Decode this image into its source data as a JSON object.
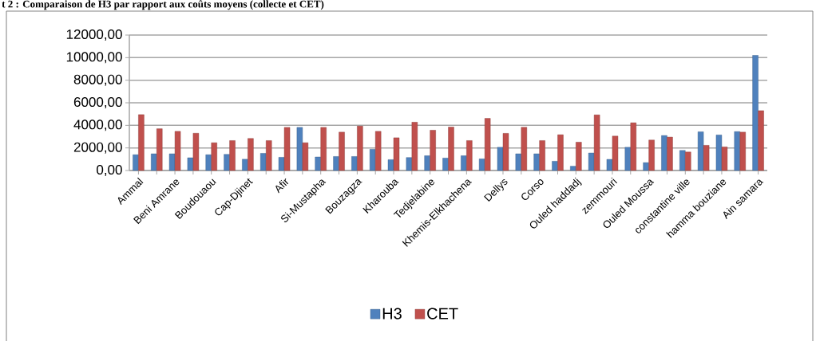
{
  "chart_data": {
    "type": "bar",
    "title": "t 2 : Comparaison de H3 par rapport aux coûts moyens (collecte et CET)",
    "categories": [
      "Ammal",
      null,
      "Beni Amrane",
      null,
      "Boudouaou",
      null,
      "Cap-Djinet",
      null,
      "Afir",
      null,
      "Si-Mustapha",
      null,
      "Bouzagza",
      null,
      "Kharouba",
      null,
      "Tedjelabine",
      null,
      "Khemis-Elkhachena",
      null,
      "Dellys",
      null,
      "Corso",
      null,
      "Ouled haddadj",
      null,
      "zemmouri",
      null,
      "Ouled Moussa",
      null,
      "constantine ville",
      null,
      "hamma bouziane",
      null,
      "Ain samara"
    ],
    "series": [
      {
        "name": "H3",
        "color": "#4f81bd",
        "values": [
          1400,
          1480,
          1480,
          1130,
          1400,
          1430,
          1000,
          1520,
          1170,
          3820,
          1200,
          1240,
          1240,
          1880,
          960,
          1150,
          1310,
          1100,
          1310,
          1030,
          2060,
          1480,
          1480,
          820,
          380,
          1550,
          990,
          2060,
          700,
          3100,
          1780,
          3430,
          3150,
          3450,
          10200
        ]
      },
      {
        "name": "CET",
        "color": "#c0504d",
        "values": [
          4950,
          3700,
          3470,
          3300,
          2460,
          2650,
          2840,
          2650,
          3820,
          2460,
          3820,
          3400,
          3940,
          3470,
          2900,
          4280,
          3570,
          3850,
          2650,
          4620,
          3290,
          3830,
          2650,
          3170,
          2510,
          4930,
          3050,
          4230,
          2700,
          2960,
          1640,
          2230,
          2090,
          3400,
          5300
        ]
      }
    ],
    "ylim": [
      0,
      12000
    ],
    "yticks": [
      {
        "value": 0,
        "label": "0,00"
      },
      {
        "value": 2000,
        "label": "2000,00"
      },
      {
        "value": 4000,
        "label": "4000,00"
      },
      {
        "value": 6000,
        "label": "6000,00"
      },
      {
        "value": 8000,
        "label": "8000,00"
      },
      {
        "value": 10000,
        "label": "10000,00"
      },
      {
        "value": 12000,
        "label": "12000,00"
      }
    ],
    "grid": "y",
    "legend": "bottom"
  }
}
